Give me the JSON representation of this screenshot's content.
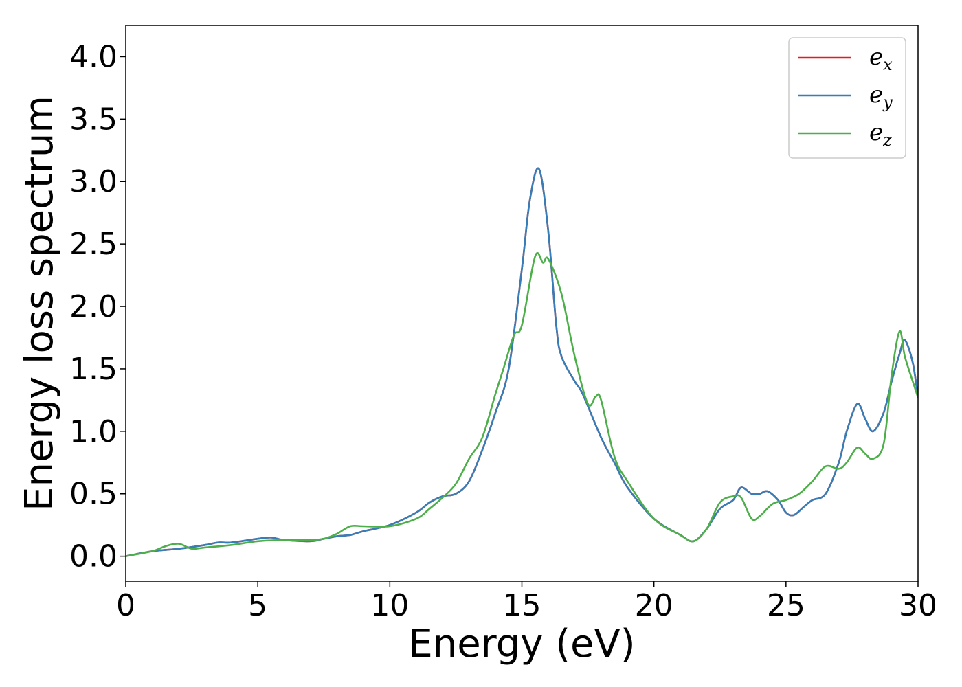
{
  "chart_data": {
    "type": "line",
    "title": "",
    "xlabel": "Energy (eV)",
    "ylabel": "Energy loss spectrum",
    "xlim": [
      0,
      30
    ],
    "ylim": [
      -0.2,
      4.25
    ],
    "xticks": [
      0,
      5,
      10,
      15,
      20,
      25,
      30
    ],
    "xtick_labels": [
      "0",
      "5",
      "10",
      "15",
      "20",
      "25",
      "30"
    ],
    "yticks": [
      0.0,
      0.5,
      1.0,
      1.5,
      2.0,
      2.5,
      3.0,
      3.5,
      4.0
    ],
    "ytick_labels": [
      "0.0",
      "0.5",
      "1.0",
      "1.5",
      "2.0",
      "2.5",
      "3.0",
      "3.5",
      "4.0"
    ],
    "grid": false,
    "legend_position": "top-right",
    "series": [
      {
        "name": "e_x",
        "label_main": "e",
        "label_sub": "x",
        "color": "#e41a1c",
        "x": [
          0,
          1,
          2,
          3,
          3.5,
          4,
          5,
          5.5,
          6,
          7,
          7.5,
          8,
          8.5,
          9,
          10,
          11,
          11.5,
          12,
          12.5,
          13,
          13.5,
          14,
          14.5,
          15,
          15.3,
          15.65,
          16,
          16.3,
          16.5,
          17,
          17.3,
          18,
          18.5,
          19,
          20,
          21,
          21.5,
          22,
          22.5,
          23,
          23.3,
          23.7,
          24,
          24.3,
          24.7,
          25,
          25.3,
          25.7,
          26,
          26.5,
          27,
          27.3,
          27.7,
          28,
          28.3,
          28.7,
          29,
          29.3,
          29.5,
          29.8,
          30
        ],
        "y": [
          0.0,
          0.04,
          0.06,
          0.09,
          0.11,
          0.11,
          0.14,
          0.15,
          0.13,
          0.12,
          0.14,
          0.16,
          0.17,
          0.2,
          0.25,
          0.35,
          0.43,
          0.48,
          0.5,
          0.6,
          0.85,
          1.15,
          1.5,
          2.3,
          2.85,
          3.1,
          2.6,
          1.85,
          1.6,
          1.4,
          1.3,
          0.95,
          0.75,
          0.55,
          0.3,
          0.17,
          0.12,
          0.22,
          0.38,
          0.45,
          0.55,
          0.5,
          0.5,
          0.52,
          0.45,
          0.35,
          0.33,
          0.4,
          0.45,
          0.5,
          0.75,
          1.0,
          1.22,
          1.1,
          1.0,
          1.15,
          1.4,
          1.62,
          1.73,
          1.55,
          1.27
        ]
      },
      {
        "name": "e_y",
        "label_main": "e",
        "label_sub": "y",
        "color": "#377eb8",
        "x": [
          0,
          1,
          2,
          3,
          3.5,
          4,
          5,
          5.5,
          6,
          7,
          7.5,
          8,
          8.5,
          9,
          10,
          11,
          11.5,
          12,
          12.5,
          13,
          13.5,
          14,
          14.5,
          15,
          15.3,
          15.65,
          16,
          16.3,
          16.5,
          17,
          17.3,
          18,
          18.5,
          19,
          20,
          21,
          21.5,
          22,
          22.5,
          23,
          23.3,
          23.7,
          24,
          24.3,
          24.7,
          25,
          25.3,
          25.7,
          26,
          26.5,
          27,
          27.3,
          27.7,
          28,
          28.3,
          28.7,
          29,
          29.3,
          29.5,
          29.8,
          30
        ],
        "y": [
          0.0,
          0.04,
          0.06,
          0.09,
          0.11,
          0.11,
          0.14,
          0.15,
          0.13,
          0.12,
          0.14,
          0.16,
          0.17,
          0.2,
          0.25,
          0.35,
          0.43,
          0.48,
          0.5,
          0.6,
          0.85,
          1.15,
          1.5,
          2.3,
          2.85,
          3.1,
          2.6,
          1.85,
          1.6,
          1.4,
          1.3,
          0.95,
          0.75,
          0.55,
          0.3,
          0.17,
          0.12,
          0.22,
          0.38,
          0.45,
          0.55,
          0.5,
          0.5,
          0.52,
          0.45,
          0.35,
          0.33,
          0.4,
          0.45,
          0.5,
          0.75,
          1.0,
          1.22,
          1.1,
          1.0,
          1.15,
          1.4,
          1.62,
          1.73,
          1.55,
          1.27
        ]
      },
      {
        "name": "e_z",
        "label_main": "e",
        "label_sub": "z",
        "color": "#4daf4a",
        "x": [
          0,
          1,
          1.5,
          2,
          2.5,
          3,
          4,
          5,
          6,
          7,
          7.5,
          8,
          8.5,
          9,
          10,
          11,
          11.5,
          12,
          12.5,
          13,
          13.5,
          14,
          14.3,
          14.7,
          15,
          15.5,
          15.8,
          16,
          16.5,
          17,
          17.5,
          17.8,
          18,
          18.5,
          19,
          20,
          21,
          21.5,
          22,
          22.5,
          23,
          23.3,
          23.7,
          24,
          24.5,
          25,
          25.5,
          26,
          26.5,
          27,
          27.3,
          27.7,
          28,
          28.3,
          28.7,
          29,
          29.3,
          29.5,
          29.8,
          30
        ],
        "y": [
          0.0,
          0.04,
          0.08,
          0.1,
          0.06,
          0.07,
          0.09,
          0.12,
          0.13,
          0.13,
          0.14,
          0.18,
          0.24,
          0.24,
          0.24,
          0.3,
          0.38,
          0.47,
          0.58,
          0.78,
          0.95,
          1.3,
          1.5,
          1.77,
          1.85,
          2.4,
          2.35,
          2.38,
          2.1,
          1.6,
          1.22,
          1.28,
          1.25,
          0.8,
          0.6,
          0.3,
          0.17,
          0.12,
          0.22,
          0.43,
          0.48,
          0.47,
          0.3,
          0.32,
          0.42,
          0.45,
          0.5,
          0.6,
          0.72,
          0.7,
          0.75,
          0.87,
          0.82,
          0.78,
          0.9,
          1.45,
          1.8,
          1.6,
          1.4,
          1.27
        ]
      }
    ]
  }
}
